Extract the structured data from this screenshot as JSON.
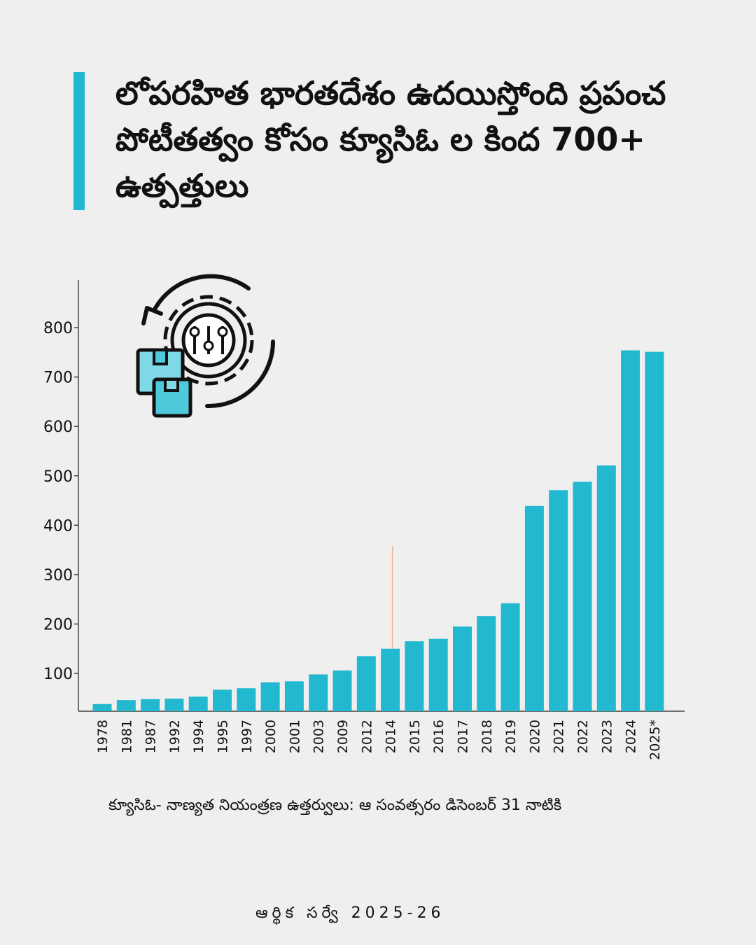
{
  "title": "లోపరహిత భారతదేశం ఉదయిస్తోంది ప్రపంచ పోటీతత్వం కోసం క్యూసిఓ ల కింద 700+ ఉత్పత్తులు",
  "accent_color": "#22b8cf",
  "icon": "gear-sliders-boxes-cycle-icon",
  "chart_data": {
    "type": "bar",
    "categories": [
      "1978",
      "1981",
      "1987",
      "1992",
      "1994",
      "1995",
      "1997",
      "2000",
      "2001",
      "2003",
      "2009",
      "2012",
      "2014",
      "2015",
      "2016",
      "2017",
      "2018",
      "2019",
      "2020",
      "2021",
      "2022",
      "2023",
      "2024",
      "2025*"
    ],
    "values": [
      38,
      46,
      48,
      49,
      53,
      67,
      70,
      82,
      84,
      98,
      106,
      135,
      150,
      165,
      170,
      195,
      216,
      242,
      439,
      471,
      488,
      521,
      754,
      751
    ],
    "yticks": [
      100,
      200,
      300,
      400,
      500,
      600,
      700,
      800
    ],
    "ylim": [
      23,
      890
    ],
    "bar_color": "#22b8cf",
    "marker_line": {
      "x": "2014",
      "color": "#f0b48a"
    },
    "title": "",
    "xlabel": "",
    "ylabel": "",
    "grid": false
  },
  "footnote": "క్యూసిఓ- నాణ్యత నియంత్రణ ఉత్తర్వులు: ఆ సంవత్సరం డిసెంబర్ 31 నాటికి",
  "source": "ఆర్థిక సర్వే 2025-26"
}
